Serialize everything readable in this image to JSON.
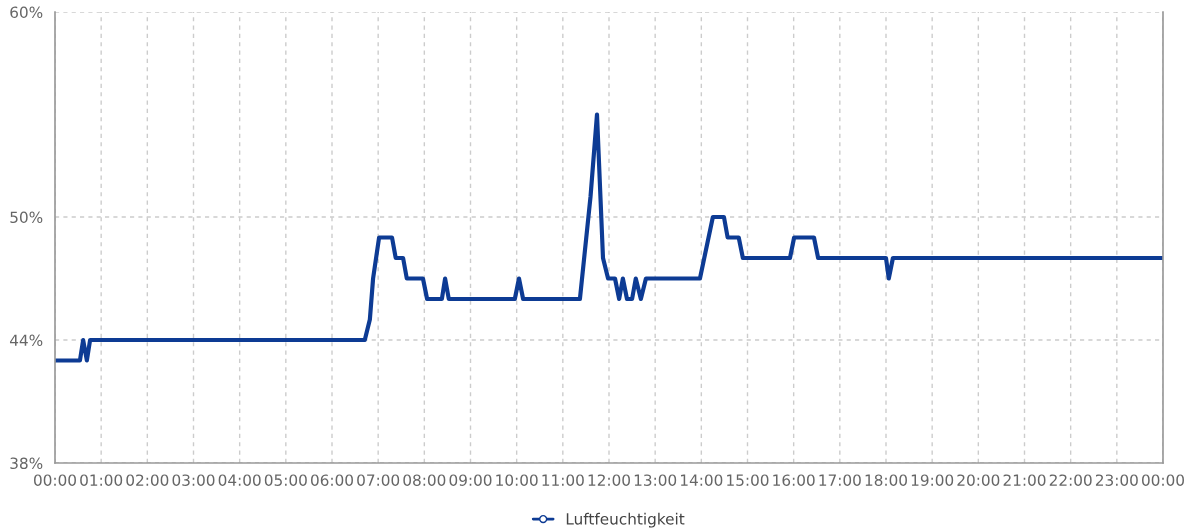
{
  "chart_data": {
    "type": "line",
    "xlim": [
      0,
      24
    ],
    "xticks": [
      {
        "value": 0,
        "label": "00:00"
      },
      {
        "value": 1,
        "label": "01:00"
      },
      {
        "value": 2,
        "label": "02:00"
      },
      {
        "value": 3,
        "label": "03:00"
      },
      {
        "value": 4,
        "label": "04:00"
      },
      {
        "value": 5,
        "label": "05:00"
      },
      {
        "value": 6,
        "label": "06:00"
      },
      {
        "value": 7,
        "label": "07:00"
      },
      {
        "value": 8,
        "label": "08:00"
      },
      {
        "value": 9,
        "label": "09:00"
      },
      {
        "value": 10,
        "label": "10:00"
      },
      {
        "value": 11,
        "label": "11:00"
      },
      {
        "value": 12,
        "label": "12:00"
      },
      {
        "value": 13,
        "label": "13:00"
      },
      {
        "value": 14,
        "label": "14:00"
      },
      {
        "value": 15,
        "label": "15:00"
      },
      {
        "value": 16,
        "label": "16:00"
      },
      {
        "value": 17,
        "label": "17:00"
      },
      {
        "value": 18,
        "label": "18:00"
      },
      {
        "value": 19,
        "label": "19:00"
      },
      {
        "value": 20,
        "label": "20:00"
      },
      {
        "value": 21,
        "label": "21:00"
      },
      {
        "value": 22,
        "label": "22:00"
      },
      {
        "value": 23,
        "label": "23:00"
      },
      {
        "value": 24,
        "label": "00:00"
      }
    ],
    "ylim": [
      38,
      60
    ],
    "yticks": [
      {
        "value": 38,
        "label": "38%"
      },
      {
        "value": 44,
        "label": "44%"
      },
      {
        "value": 50,
        "label": "50%"
      },
      {
        "value": 60,
        "label": "60%"
      }
    ],
    "grid": true,
    "legend": "bottom",
    "line_style": "solid",
    "series": [
      {
        "name": "Luftfeuchtigkeit",
        "color": "#0d3b94",
        "x": [
          0,
          0.54,
          0.61,
          0.69,
          0.76,
          6.71,
          6.82,
          6.89,
          7.02,
          7.3,
          7.38,
          7.54,
          7.62,
          7.97,
          8.06,
          8.38,
          8.45,
          8.53,
          9.96,
          10.05,
          10.14,
          11.37,
          11.6,
          11.74,
          11.87,
          11.98,
          12.13,
          12.22,
          12.3,
          12.39,
          12.5,
          12.58,
          12.69,
          12.8,
          13.97,
          14.25,
          14.49,
          14.57,
          14.81,
          14.9,
          15.92,
          16.01,
          16.44,
          16.53,
          18.0,
          18.06,
          18.15,
          24
        ],
        "values": [
          43,
          43,
          44,
          43,
          44,
          44,
          45,
          47,
          49,
          49,
          48,
          48,
          47,
          47,
          46,
          46,
          47,
          46,
          46,
          47,
          46,
          46,
          51,
          55,
          48,
          47,
          47,
          46,
          47,
          46,
          46,
          47,
          46,
          47,
          47,
          50,
          50,
          49,
          49,
          48,
          48,
          49,
          49,
          48,
          48,
          47,
          48,
          48
        ]
      }
    ]
  }
}
